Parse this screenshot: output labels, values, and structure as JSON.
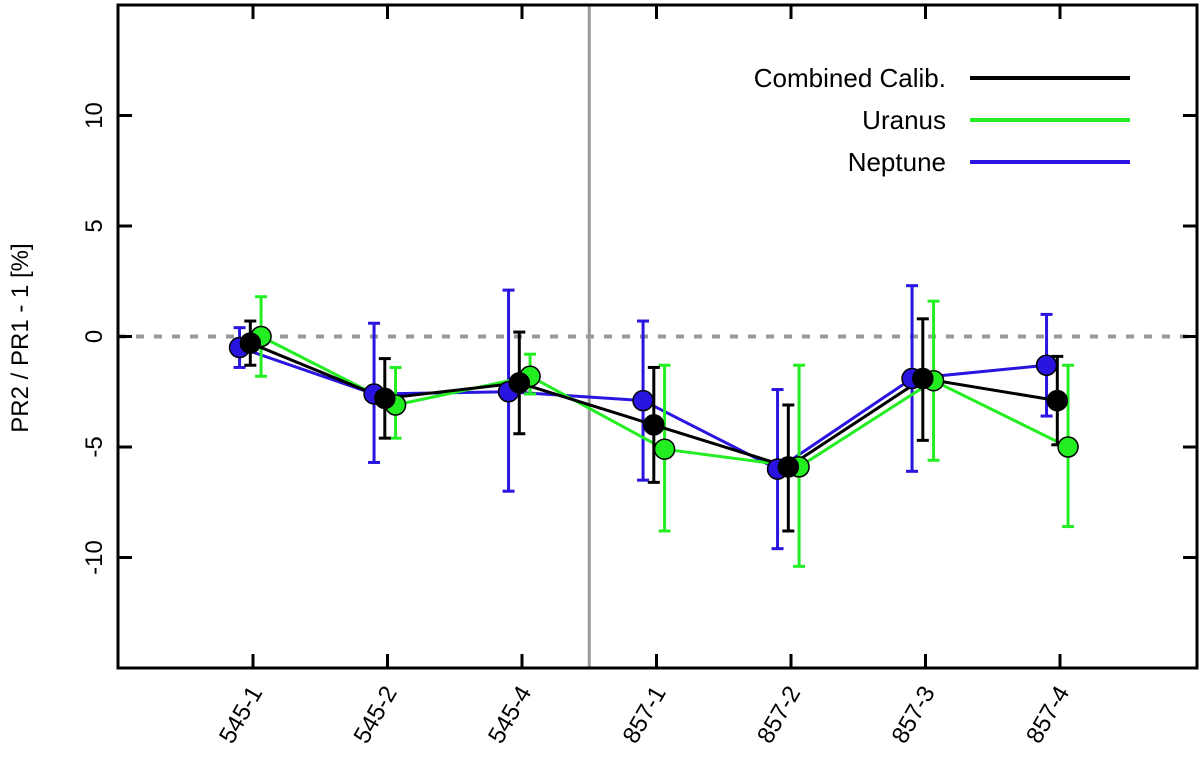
{
  "chart_data": {
    "type": "line",
    "title": "",
    "xlabel": "",
    "ylabel": "PR2 / PR1 - 1 [%]",
    "ylim": [
      -15,
      15
    ],
    "yticks": [
      10,
      5,
      0,
      -5,
      -10
    ],
    "categories": [
      "545-1",
      "545-2",
      "545-4",
      "857-1",
      "857-2",
      "857-3",
      "857-4"
    ],
    "reference_line_y": 0,
    "divider_after_category": "545-4",
    "legend_position": "top-right",
    "series": [
      {
        "name": "Combined Calib.",
        "color": "#000000",
        "x_offset": -0.02,
        "values": [
          -0.3,
          -2.8,
          -2.1,
          -4.0,
          -5.9,
          -1.9,
          -2.9
        ],
        "err_low": [
          -1.3,
          -4.6,
          -4.4,
          -6.6,
          -8.8,
          -4.7,
          -4.9
        ],
        "err_high": [
          0.7,
          -1.0,
          0.2,
          -1.4,
          -3.1,
          0.8,
          -0.9
        ]
      },
      {
        "name": "Uranus",
        "color": "#22ee22",
        "x_offset": 0.06,
        "values": [
          0.0,
          -3.1,
          -1.8,
          -5.1,
          -5.9,
          -2.0,
          -5.0
        ],
        "err_low": [
          -1.8,
          -4.6,
          -2.6,
          -8.8,
          -10.4,
          -5.6,
          -8.6
        ],
        "err_high": [
          1.8,
          -1.4,
          -0.8,
          -1.3,
          -1.3,
          1.6,
          -1.3
        ]
      },
      {
        "name": "Neptune",
        "color": "#2a14e0",
        "x_offset": -0.1,
        "values": [
          -0.5,
          -2.6,
          -2.5,
          -2.9,
          -6.0,
          -1.9,
          -1.3
        ],
        "err_low": [
          -1.4,
          -5.7,
          -7.0,
          -6.5,
          -9.6,
          -6.1,
          -3.6
        ],
        "err_high": [
          0.4,
          0.6,
          2.1,
          0.7,
          -2.4,
          2.3,
          1.0
        ]
      }
    ]
  }
}
